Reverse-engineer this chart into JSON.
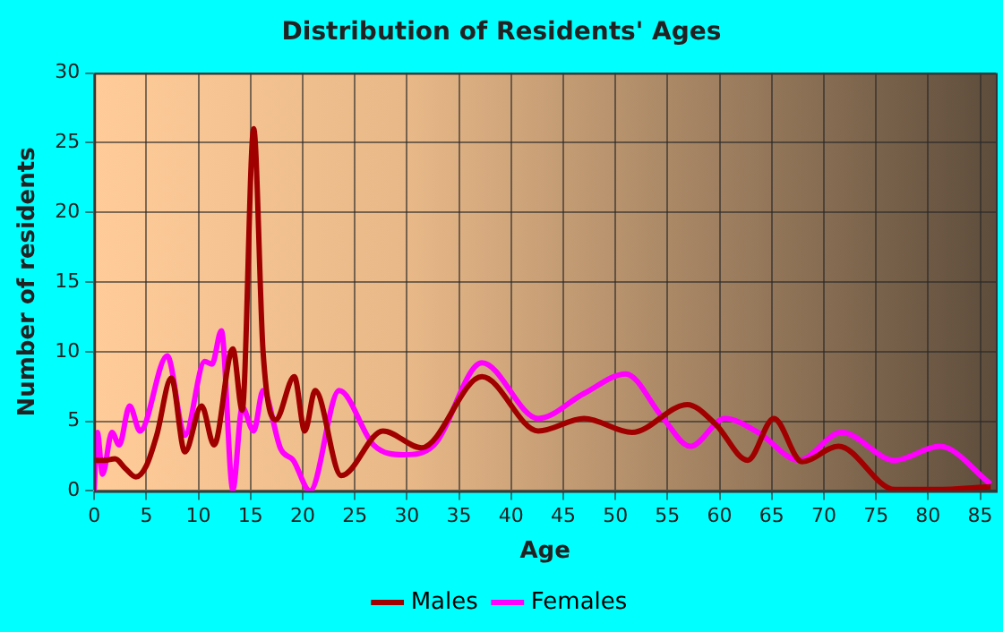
{
  "chart_data": {
    "type": "line",
    "title": "Distribution of Residents' Ages",
    "xlabel": "Age",
    "ylabel": "Number of residents",
    "xlim": [
      0,
      86.5
    ],
    "xticks": [
      0,
      5,
      10,
      15,
      20,
      25,
      30,
      35,
      40,
      45,
      50,
      55,
      60,
      65,
      70,
      75,
      80,
      85
    ],
    "ylim": [
      0,
      30
    ],
    "yticks": [
      0,
      5,
      10,
      15,
      20,
      25,
      30
    ],
    "grid": true,
    "legend": "bottom",
    "marker": "none",
    "line_style": "solid",
    "series": [
      {
        "name": "Males",
        "color": "#a00000",
        "x": [
          0,
          1,
          2,
          3,
          4,
          5,
          6,
          7.4,
          8.7,
          10.3,
          11.5,
          13.3,
          14.2,
          15.3,
          16.2,
          17.4,
          19.2,
          20.2,
          21.2,
          23.7,
          27.7,
          31.4,
          37.2,
          42.6,
          47,
          51.6,
          56.9,
          59.6,
          62.7,
          65.2,
          67.9,
          71.4,
          76.8,
          80.8,
          86
        ],
        "values": [
          2.2,
          2.2,
          2.3,
          1.6,
          1,
          1.8,
          4,
          8.1,
          2.8,
          6.1,
          3.3,
          10.2,
          5.8,
          26,
          10,
          5.1,
          8.2,
          4.3,
          7.2,
          1.1,
          4.3,
          3.1,
          8.2,
          4.3,
          5.2,
          4.2,
          6.2,
          4.8,
          2.2,
          5.2,
          2.1,
          3.2,
          0.1,
          0.1,
          0.3
        ]
      },
      {
        "name": "Females",
        "color": "#ff00ff",
        "x": [
          0,
          0.3,
          0.8,
          1.7,
          2.4,
          3.4,
          4.4,
          7,
          8.7,
          10.6,
          11.3,
          12.2,
          13.3,
          14.2,
          15.3,
          16.2,
          17.9,
          19.1,
          20.7,
          23.5,
          26.8,
          29.7,
          32.6,
          37.2,
          42.6,
          47,
          51,
          54.5,
          57.2,
          60.5,
          63.7,
          67.6,
          71.7,
          76.8,
          81.1,
          86
        ],
        "values": [
          0,
          4.2,
          1.2,
          4.2,
          3.3,
          6.1,
          4.3,
          9.7,
          4,
          9.3,
          9.1,
          11.5,
          0.1,
          6,
          4.3,
          7.2,
          3,
          2.2,
          0,
          7.2,
          3.3,
          2.6,
          3.3,
          9.2,
          5.2,
          7,
          8.4,
          5.3,
          3.2,
          5.2,
          4.2,
          2.2,
          4.2,
          2.2,
          3.2,
          0.5
        ]
      }
    ]
  }
}
